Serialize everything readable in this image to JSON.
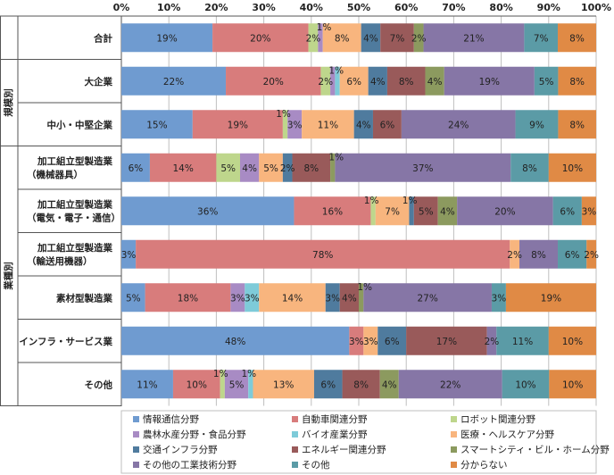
{
  "chart_data": {
    "type": "bar",
    "orientation": "horizontal",
    "stacked": "percent",
    "xlim": [
      0,
      100
    ],
    "x_ticks": [
      "0%",
      "10%",
      "20%",
      "30%",
      "40%",
      "50%",
      "60%",
      "70%",
      "80%",
      "90%",
      "100%"
    ],
    "grid": true,
    "legend_position": "bottom",
    "group_labels": [
      "規模別",
      "業種別"
    ],
    "categories": [
      [
        "合計"
      ],
      [
        "大企業"
      ],
      [
        "中小・中堅企業"
      ],
      [
        "加工組立型製造業",
        "（機械器具）"
      ],
      [
        "加工組立型製造業",
        "（電気・電子・通信）"
      ],
      [
        "加工組立型製造業",
        "（輸送用機器）"
      ],
      [
        "素材型製造業"
      ],
      [
        "インフラ・サービス業"
      ],
      [
        "その他"
      ]
    ],
    "series": [
      {
        "name": "情報通信分野",
        "color": "#6f9bd0",
        "values": [
          19,
          22,
          15,
          6,
          36,
          3,
          5,
          48,
          11
        ]
      },
      {
        "name": "自動車関連分野",
        "color": "#d87c7c",
        "values": [
          20,
          20,
          19,
          14,
          16,
          78,
          18,
          3,
          10
        ]
      },
      {
        "name": "ロボット関連分野",
        "color": "#bed68c",
        "values": [
          2,
          2,
          1,
          5,
          1,
          0,
          0,
          0,
          1
        ]
      },
      {
        "name": "農林水産分野・食品分野",
        "color": "#a88bc4",
        "values": [
          1,
          1,
          3,
          4,
          0,
          0,
          3,
          0,
          5
        ]
      },
      {
        "name": "バイオ産業分野",
        "color": "#7ecbd9",
        "values": [
          0,
          1,
          0,
          0,
          0,
          0,
          3,
          0,
          1
        ]
      },
      {
        "name": "医療・ヘルスケア分野",
        "color": "#f8b57e",
        "values": [
          8,
          6,
          11,
          5,
          7,
          2,
          14,
          3,
          13
        ]
      },
      {
        "name": "交通インフラ分野",
        "color": "#4f7b9e",
        "values": [
          4,
          4,
          4,
          2,
          1,
          0,
          3,
          6,
          6
        ]
      },
      {
        "name": "エネルギー関連分野",
        "color": "#995a5a",
        "values": [
          7,
          8,
          6,
          8,
          5,
          0,
          4,
          17,
          8
        ]
      },
      {
        "name": "スマートシティ・ビル・ホーム分野",
        "color": "#8c9a5f",
        "values": [
          2,
          4,
          0,
          1,
          4,
          0,
          1,
          0,
          4
        ]
      },
      {
        "name": "その他の工業技術分野",
        "color": "#8676a6",
        "values": [
          21,
          19,
          24,
          37,
          20,
          8,
          27,
          2,
          22
        ]
      },
      {
        "name": "その他",
        "color": "#5b9ba6",
        "values": [
          7,
          5,
          9,
          8,
          6,
          6,
          3,
          11,
          10
        ]
      },
      {
        "name": "分からない",
        "color": "#e08a45",
        "values": [
          8,
          8,
          8,
          10,
          3,
          2,
          19,
          10,
          10
        ]
      }
    ],
    "data_labels": [
      [
        [
          "19%",
          0
        ],
        [
          "20%",
          1
        ],
        [
          "2%",
          2
        ],
        [
          "1%",
          3
        ],
        [
          "8%",
          5
        ],
        [
          "4%",
          6
        ],
        [
          "7%",
          7
        ],
        [
          "2%",
          8
        ],
        [
          "21%",
          9
        ],
        [
          "7%",
          10
        ],
        [
          "8%",
          11
        ]
      ],
      [
        [
          "22%",
          0
        ],
        [
          "20%",
          1
        ],
        [
          "2%",
          2
        ],
        [
          "1%",
          3
        ],
        [
          "6%",
          5
        ],
        [
          "4%",
          6
        ],
        [
          "8%",
          7
        ],
        [
          "4%",
          8
        ],
        [
          "19%",
          9
        ],
        [
          "5%",
          10
        ],
        [
          "8%",
          11
        ]
      ],
      [
        [
          "15%",
          0
        ],
        [
          "19%",
          1
        ],
        [
          "1%",
          2
        ],
        [
          "3%",
          3
        ],
        [
          "11%",
          5
        ],
        [
          "4%",
          6
        ],
        [
          "6%",
          7
        ],
        [
          "24%",
          9
        ],
        [
          "9%",
          10
        ],
        [
          "8%",
          11
        ]
      ],
      [
        [
          "6%",
          0
        ],
        [
          "14%",
          1
        ],
        [
          "5%",
          2
        ],
        [
          "4%",
          3
        ],
        [
          "5%",
          5
        ],
        [
          "2%",
          6
        ],
        [
          "8%",
          7
        ],
        [
          "1%",
          8
        ],
        [
          "37%",
          9
        ],
        [
          "8%",
          10
        ],
        [
          "10%",
          11
        ]
      ],
      [
        [
          "36%",
          0
        ],
        [
          "16%",
          1
        ],
        [
          "1%",
          2
        ],
        [
          "7%",
          5
        ],
        [
          "1%",
          6
        ],
        [
          "5%",
          7
        ],
        [
          "4%",
          8
        ],
        [
          "20%",
          9
        ],
        [
          "6%",
          10
        ],
        [
          "3%",
          11
        ]
      ],
      [
        [
          "3%",
          0
        ],
        [
          "78%",
          1
        ],
        [
          "2%",
          5
        ],
        [
          "8%",
          9
        ],
        [
          "6%",
          10
        ],
        [
          "2%",
          11
        ]
      ],
      [
        [
          "5%",
          0
        ],
        [
          "18%",
          1
        ],
        [
          "3%",
          3
        ],
        [
          "3%",
          4
        ],
        [
          "14%",
          5
        ],
        [
          "3%",
          6
        ],
        [
          "4%",
          7
        ],
        [
          "1%",
          8
        ],
        [
          "27%",
          9
        ],
        [
          "3%",
          10
        ],
        [
          "19%",
          11
        ]
      ],
      [
        [
          "48%",
          0
        ],
        [
          "3%",
          1
        ],
        [
          "3%",
          5
        ],
        [
          "6%",
          6
        ],
        [
          "17%",
          7
        ],
        [
          "2%",
          9
        ],
        [
          "11%",
          10
        ],
        [
          "10%",
          11
        ]
      ],
      [
        [
          "11%",
          0
        ],
        [
          "10%",
          1
        ],
        [
          "1%",
          2
        ],
        [
          "5%",
          3
        ],
        [
          "1%",
          4
        ],
        [
          "13%",
          5
        ],
        [
          "6%",
          6
        ],
        [
          "8%",
          7
        ],
        [
          "4%",
          8
        ],
        [
          "22%",
          9
        ],
        [
          "10%",
          10
        ],
        [
          "10%",
          11
        ]
      ]
    ]
  }
}
